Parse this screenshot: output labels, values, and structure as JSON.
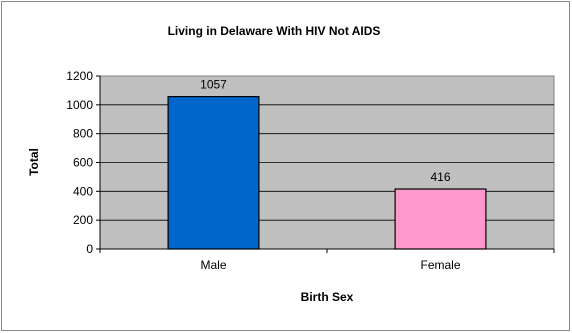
{
  "chart_data": {
    "type": "bar",
    "title": "Living in Delaware With HIV Not AIDS",
    "xlabel": "Birth Sex",
    "ylabel": "Total",
    "categories": [
      "Male",
      "Female"
    ],
    "values": [
      1057,
      416
    ],
    "data_labels": [
      "1057",
      "416"
    ],
    "ylim": [
      0,
      1200
    ],
    "yticks": [
      0,
      200,
      400,
      600,
      800,
      1000,
      1200
    ],
    "bar_colors": [
      "#0066cc",
      "#ff99cc"
    ],
    "plot_background": "#c0c0c0",
    "grid": true,
    "legend": "none"
  }
}
